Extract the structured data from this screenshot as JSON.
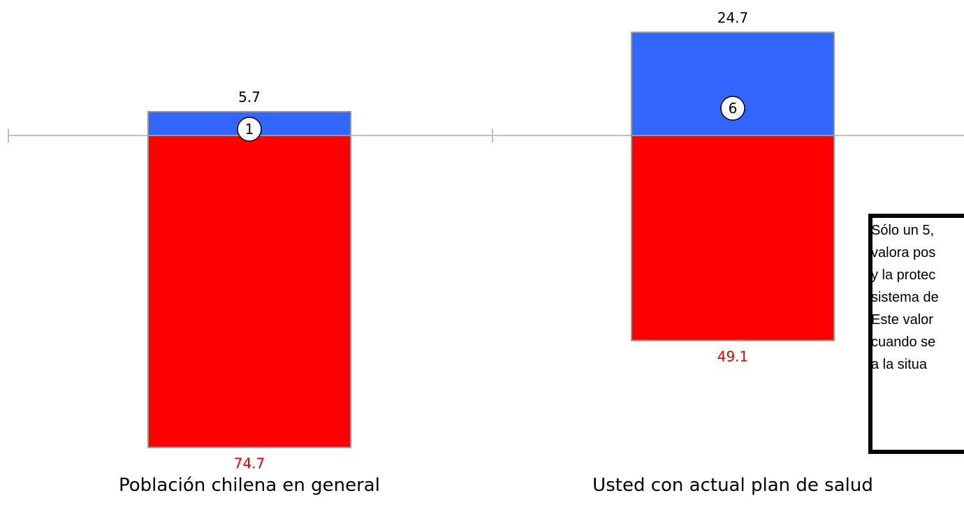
{
  "chart_data": {
    "type": "bar",
    "stacked": "diverging",
    "categories": [
      "Población chilena en general",
      "Usted con actual plan de salud"
    ],
    "series": [
      {
        "values": [
          5.7,
          24.7
        ],
        "color": "#3366ff",
        "label_color": "#000000",
        "direction": "up"
      },
      {
        "values": [
          74.7,
          49.1
        ],
        "color": "#ff0000",
        "label_color": "#e00000",
        "direction": "down"
      }
    ],
    "badges": [
      "1",
      "6"
    ],
    "grid": false
  },
  "note": {
    "lines": [
      "Sólo un 5,",
      "valora pos",
      "y la protec",
      "sistema de",
      "Este valor",
      "cuando se",
      "a la situa"
    ]
  }
}
